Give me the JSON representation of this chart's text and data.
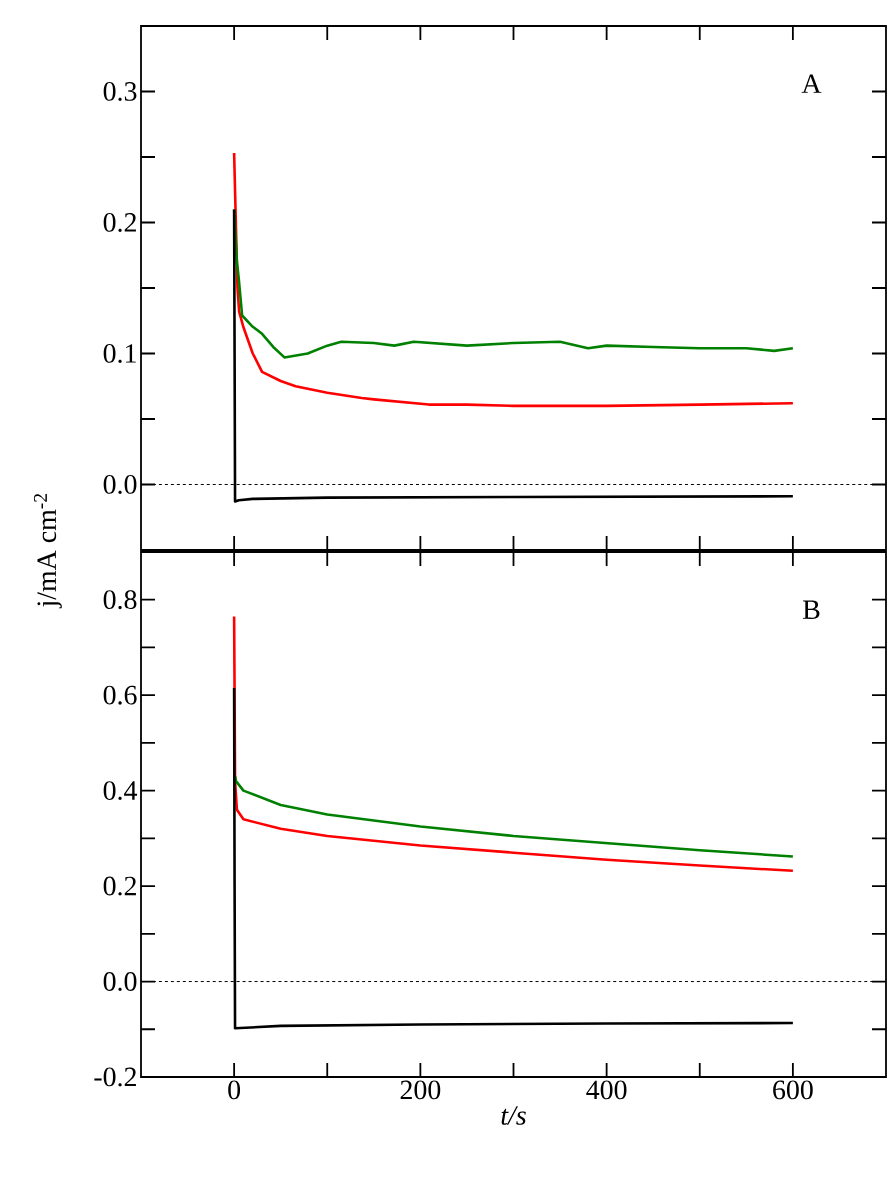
{
  "chart_data": [
    {
      "type": "line",
      "annotations": [
        "A"
      ],
      "ylabel": "j/mA cm$^{-2}$",
      "xlim": [
        -100,
        700
      ],
      "ylim": [
        -0.05,
        0.35
      ],
      "xticks": [
        0,
        200,
        400,
        600,
        {
          "value": 100,
          "label": null
        },
        {
          "value": 300,
          "label": null
        },
        {
          "value": 500,
          "label": null
        }
      ],
      "yticks": [
        {
          "value": 0,
          "label": "0.0"
        },
        0.1,
        0.2,
        0.3,
        {
          "value": -0.05,
          "label": null
        },
        {
          "value": 0.05,
          "label": null
        },
        {
          "value": 0.15,
          "label": null
        },
        {
          "value": 0.25,
          "label": null
        }
      ],
      "tick_labels": "y",
      "ref_lines": [
        {
          "axis": "y",
          "value": 0,
          "line_style": "dashed",
          "color": "#000000"
        }
      ],
      "series": [
        {
          "color": "#ff0000",
          "x": [
            0,
            3.6,
            5.4,
            10,
            20,
            30,
            50,
            66,
            100,
            137,
            150,
            209,
            250,
            300,
            400,
            500,
            600
          ],
          "values": [
            0.253,
            0.15,
            0.132,
            0.12,
            0.1,
            0.086,
            0.079,
            0.075,
            0.07,
            0.066,
            0.065,
            0.061,
            0.061,
            0.06,
            0.06,
            0.061,
            0.062
          ]
        },
        {
          "color": "#008000",
          "x": [
            0,
            3,
            5,
            8.6,
            19,
            30,
            42,
            54,
            79,
            100,
            115,
            150,
            172,
            193,
            250,
            300,
            350,
            380,
            400,
            450,
            500,
            550,
            580,
            600
          ],
          "values": [
            0.21,
            0.17,
            0.157,
            0.129,
            0.121,
            0.115,
            0.105,
            0.097,
            0.1,
            0.106,
            0.109,
            0.108,
            0.106,
            0.109,
            0.106,
            0.108,
            0.109,
            0.104,
            0.106,
            0.105,
            0.104,
            0.104,
            0.102,
            0.104
          ]
        },
        {
          "color": "#000000",
          "x": [
            0,
            0.5,
            1,
            5,
            20,
            100,
            300,
            600
          ],
          "values": [
            0.21,
            0.1,
            -0.013,
            -0.012,
            -0.011,
            -0.01,
            -0.0095,
            -0.009
          ]
        }
      ]
    },
    {
      "type": "line",
      "annotations": [
        "B"
      ],
      "xlabel": "t/s",
      "xlim": [
        -100,
        700
      ],
      "ylim": [
        -0.2,
        0.9
      ],
      "xticks": [
        0,
        200,
        400,
        600,
        {
          "value": 100,
          "label": null
        },
        {
          "value": 300,
          "label": null
        },
        {
          "value": 500,
          "label": null
        }
      ],
      "yticks": [
        -0.2,
        {
          "value": 0,
          "label": "0.0"
        },
        0.2,
        0.4,
        0.6,
        0.8,
        {
          "value": -0.1,
          "label": null
        },
        {
          "value": 0.1,
          "label": null
        },
        {
          "value": 0.3,
          "label": null
        },
        {
          "value": 0.5,
          "label": null
        },
        {
          "value": 0.7,
          "label": null
        }
      ],
      "ref_lines": [
        {
          "axis": "y",
          "value": 0,
          "line_style": "dashed",
          "color": "#000000"
        }
      ],
      "series": [
        {
          "color": "#ff0000",
          "x": [
            0,
            0.5,
            1,
            3,
            10,
            50,
            100,
            200,
            300,
            400,
            500,
            600
          ],
          "values": [
            0.765,
            0.6,
            0.42,
            0.36,
            0.34,
            0.32,
            0.305,
            0.285,
            0.27,
            0.255,
            0.243,
            0.232
          ]
        },
        {
          "color": "#008000",
          "x": [
            1,
            2,
            10,
            50,
            100,
            200,
            300,
            400,
            500,
            600
          ],
          "values": [
            0.43,
            0.42,
            0.4,
            0.37,
            0.35,
            0.325,
            0.305,
            0.29,
            0.275,
            0.262
          ]
        },
        {
          "color": "#000000",
          "x": [
            0,
            0.5,
            1,
            50,
            200,
            400,
            600
          ],
          "values": [
            0.615,
            0.2,
            -0.098,
            -0.093,
            -0.09,
            -0.088,
            -0.087
          ]
        }
      ]
    }
  ]
}
